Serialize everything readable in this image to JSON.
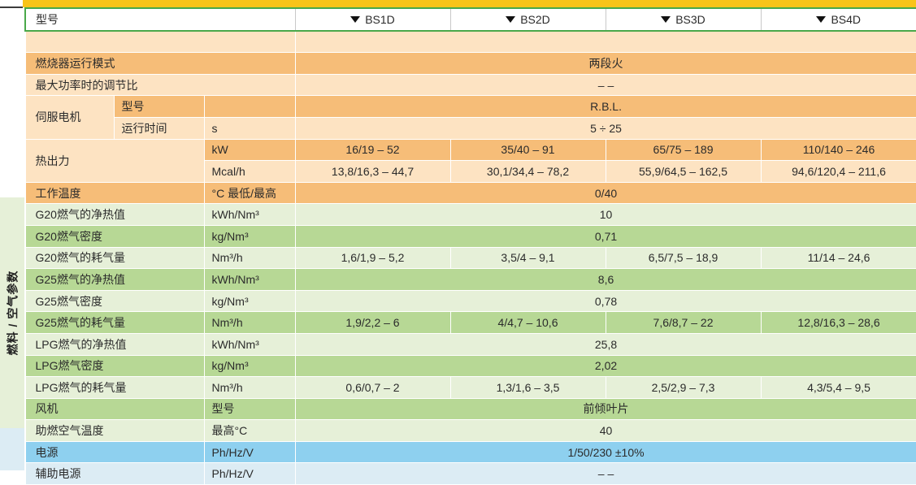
{
  "side_label": "燃料 / 空气参数",
  "header": {
    "label": "型号",
    "models": [
      "BS1D",
      "BS2D",
      "BS3D",
      "BS4D"
    ]
  },
  "rows": {
    "mode": {
      "label": "燃烧器运行模式",
      "value": "两段火"
    },
    "ratio": {
      "label": "最大功率时的调节比",
      "value": "– –"
    },
    "servo": {
      "label": "伺服电机",
      "sub1": "型号",
      "val1": "R.B.L.",
      "sub2": "运行时间",
      "unit2": "s",
      "val2": "5 ÷ 25"
    },
    "heat": {
      "label": "热出力",
      "unit_kw": "kW",
      "kw": [
        "16/19 – 52",
        "35/40 – 91",
        "65/75 – 189",
        "110/140 – 246"
      ],
      "unit_mcal": "Mcal/h",
      "mcal": [
        "13,8/16,3 – 44,7",
        "30,1/34,4 – 78,2",
        "55,9/64,5 – 162,5",
        "94,6/120,4 – 211,6"
      ]
    },
    "temp": {
      "label": "工作温度",
      "unit": "°C 最低/最高",
      "value": "0/40"
    },
    "g20_heat": {
      "label": "G20燃气的净热值",
      "unit": "kWh/Nm³",
      "value": "10"
    },
    "g20_density": {
      "label": "G20燃气密度",
      "unit": "kg/Nm³",
      "value": "0,71"
    },
    "g20_cons": {
      "label": "G20燃气的耗气量",
      "unit": "Nm³/h",
      "values": [
        "1,6/1,9 – 5,2",
        "3,5/4 – 9,1",
        "6,5/7,5 – 18,9",
        "11/14 – 24,6"
      ]
    },
    "g25_heat": {
      "label": "G25燃气的净热值",
      "unit": "kWh/Nm³",
      "value": "8,6"
    },
    "g25_density": {
      "label": "G25燃气密度",
      "unit": "kg/Nm³",
      "value": "0,78"
    },
    "g25_cons": {
      "label": "G25燃气的耗气量",
      "unit": "Nm³/h",
      "values": [
        "1,9/2,2 – 6",
        "4/4,7 – 10,6",
        "7,6/8,7 – 22",
        "12,8/16,3 – 28,6"
      ]
    },
    "lpg_heat": {
      "label": "LPG燃气的净热值",
      "unit": "kWh/Nm³",
      "value": "25,8"
    },
    "lpg_density": {
      "label": "LPG燃气密度",
      "unit": "kg/Nm³",
      "value": "2,02"
    },
    "lpg_cons": {
      "label": "LPG燃气的耗气量",
      "unit": "Nm³/h",
      "values": [
        "0,6/0,7 – 2",
        "1,3/1,6 – 3,5",
        "2,5/2,9 – 7,3",
        "4,3/5,4 – 9,5"
      ]
    },
    "fan": {
      "label": "风机",
      "unit": "型号",
      "value": "前倾叶片"
    },
    "air_temp": {
      "label": "助燃空气温度",
      "unit": "最高°C",
      "value": "40"
    },
    "power": {
      "label": "电源",
      "unit": "Ph/Hz/V",
      "value": "1/50/230 ±10%"
    },
    "aux_power": {
      "label": "辅助电源",
      "unit": "Ph/Hz/V",
      "value": "– –"
    }
  },
  "colors": {
    "accent_yellow": "#f9c418",
    "orange": "#f6bd78",
    "orange_light": "#fde3c2",
    "green": "#b7d895",
    "green_light": "#e6f0d8",
    "blue": "#8ed0ef",
    "blue_light": "#dcecf4",
    "header_border": "#4aa84a"
  }
}
